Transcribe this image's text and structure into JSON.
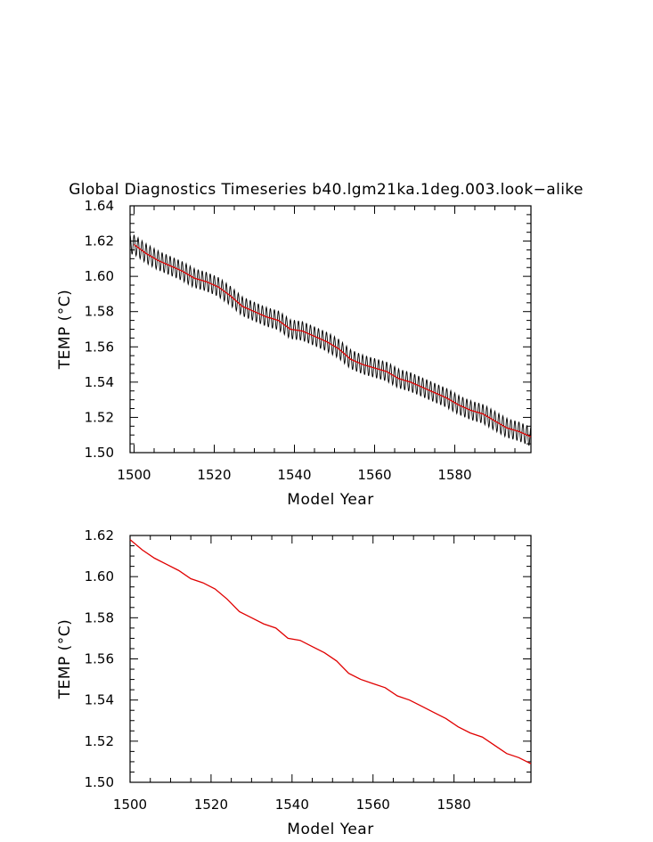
{
  "figure": {
    "title": "Global Diagnostics Timeseries b40.lgm21ka.1deg.003.look−alike"
  },
  "chart_data": [
    {
      "type": "line",
      "xlabel": "Model Year",
      "ylabel": "TEMP (°C)",
      "xlim": [
        1499,
        1599
      ],
      "ylim": [
        1.5,
        1.64
      ],
      "x_ticks": [
        "1500",
        "1520",
        "1540",
        "1560",
        "1580"
      ],
      "y_ticks": [
        "1.50",
        "1.52",
        "1.54",
        "1.56",
        "1.58",
        "1.60",
        "1.62",
        "1.64"
      ],
      "grid": false,
      "series": [
        {
          "kind": "monthly",
          "color": "#000000",
          "seasonal_amplitude": 0.0055,
          "x": [
            1499,
            1599
          ],
          "y_mean_source": "annual"
        },
        {
          "kind": "annual",
          "color": "#e00000",
          "x": [
            1500,
            1503,
            1506,
            1509,
            1512,
            1515,
            1518,
            1521,
            1524,
            1527,
            1530,
            1533,
            1536,
            1539,
            1542,
            1545,
            1548,
            1551,
            1554,
            1557,
            1560,
            1563,
            1566,
            1569,
            1572,
            1575,
            1578,
            1581,
            1584,
            1587,
            1590,
            1593,
            1596,
            1599
          ],
          "y": [
            1.618,
            1.613,
            1.609,
            1.606,
            1.603,
            1.599,
            1.597,
            1.594,
            1.589,
            1.583,
            1.58,
            1.577,
            1.575,
            1.57,
            1.569,
            1.566,
            1.563,
            1.559,
            1.553,
            1.55,
            1.548,
            1.546,
            1.542,
            1.54,
            1.537,
            1.534,
            1.531,
            1.527,
            1.524,
            1.522,
            1.518,
            1.514,
            1.512,
            1.509
          ]
        }
      ]
    },
    {
      "type": "line",
      "xlabel": "Model Year",
      "ylabel": "TEMP (°C)",
      "xlim": [
        1500,
        1599
      ],
      "ylim": [
        1.5,
        1.62
      ],
      "x_ticks": [
        "1500",
        "1520",
        "1540",
        "1560",
        "1580"
      ],
      "y_ticks": [
        "1.50",
        "1.52",
        "1.54",
        "1.56",
        "1.58",
        "1.60",
        "1.62"
      ],
      "grid": false,
      "series": [
        {
          "kind": "annual",
          "color": "#e00000",
          "x": [
            1500,
            1503,
            1506,
            1509,
            1512,
            1515,
            1518,
            1521,
            1524,
            1527,
            1530,
            1533,
            1536,
            1539,
            1542,
            1545,
            1548,
            1551,
            1554,
            1557,
            1560,
            1563,
            1566,
            1569,
            1572,
            1575,
            1578,
            1581,
            1584,
            1587,
            1590,
            1593,
            1596,
            1599
          ],
          "y": [
            1.618,
            1.613,
            1.609,
            1.606,
            1.603,
            1.599,
            1.597,
            1.594,
            1.589,
            1.583,
            1.58,
            1.577,
            1.575,
            1.57,
            1.569,
            1.566,
            1.563,
            1.559,
            1.553,
            1.55,
            1.548,
            1.546,
            1.542,
            1.54,
            1.537,
            1.534,
            1.531,
            1.527,
            1.524,
            1.522,
            1.518,
            1.514,
            1.512,
            1.509
          ]
        }
      ]
    }
  ]
}
